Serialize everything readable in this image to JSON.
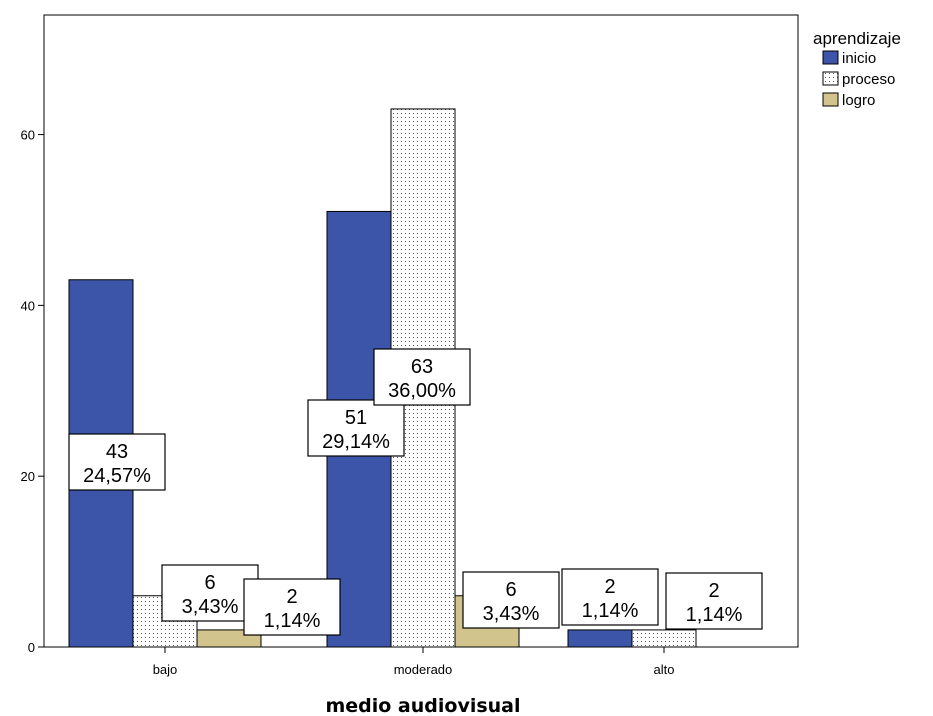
{
  "chart_data": {
    "type": "bar",
    "categories": [
      "bajo",
      "moderado",
      "alto"
    ],
    "xlabel": "medio audiovisual",
    "ylabel": "",
    "ylim": [
      0,
      74
    ],
    "yticks": [
      0,
      20,
      40,
      60
    ],
    "grid": false,
    "legend": {
      "title": "aprendizaje",
      "placement": "right"
    },
    "series": [
      {
        "name": "inicio",
        "color": "#3d55a8",
        "pattern": "solid",
        "values": [
          43,
          51,
          2
        ],
        "labels": [
          [
            "43",
            "24,57%"
          ],
          [
            "51",
            "29,14%"
          ],
          [
            "2",
            "1,14%"
          ]
        ]
      },
      {
        "name": "proceso",
        "color": "#ffffff",
        "pattern": "dots",
        "values": [
          6,
          63,
          2
        ],
        "labels": [
          [
            "6",
            "3,43%"
          ],
          [
            "63",
            "36,00%"
          ],
          [
            "2",
            "1,14%"
          ]
        ]
      },
      {
        "name": "logro",
        "color": "#d1c58d",
        "pattern": "solid",
        "values": [
          2,
          6,
          null
        ],
        "labels": [
          [
            "2",
            "1,14%"
          ],
          [
            "6",
            "3,43%"
          ],
          null
        ]
      }
    ]
  }
}
